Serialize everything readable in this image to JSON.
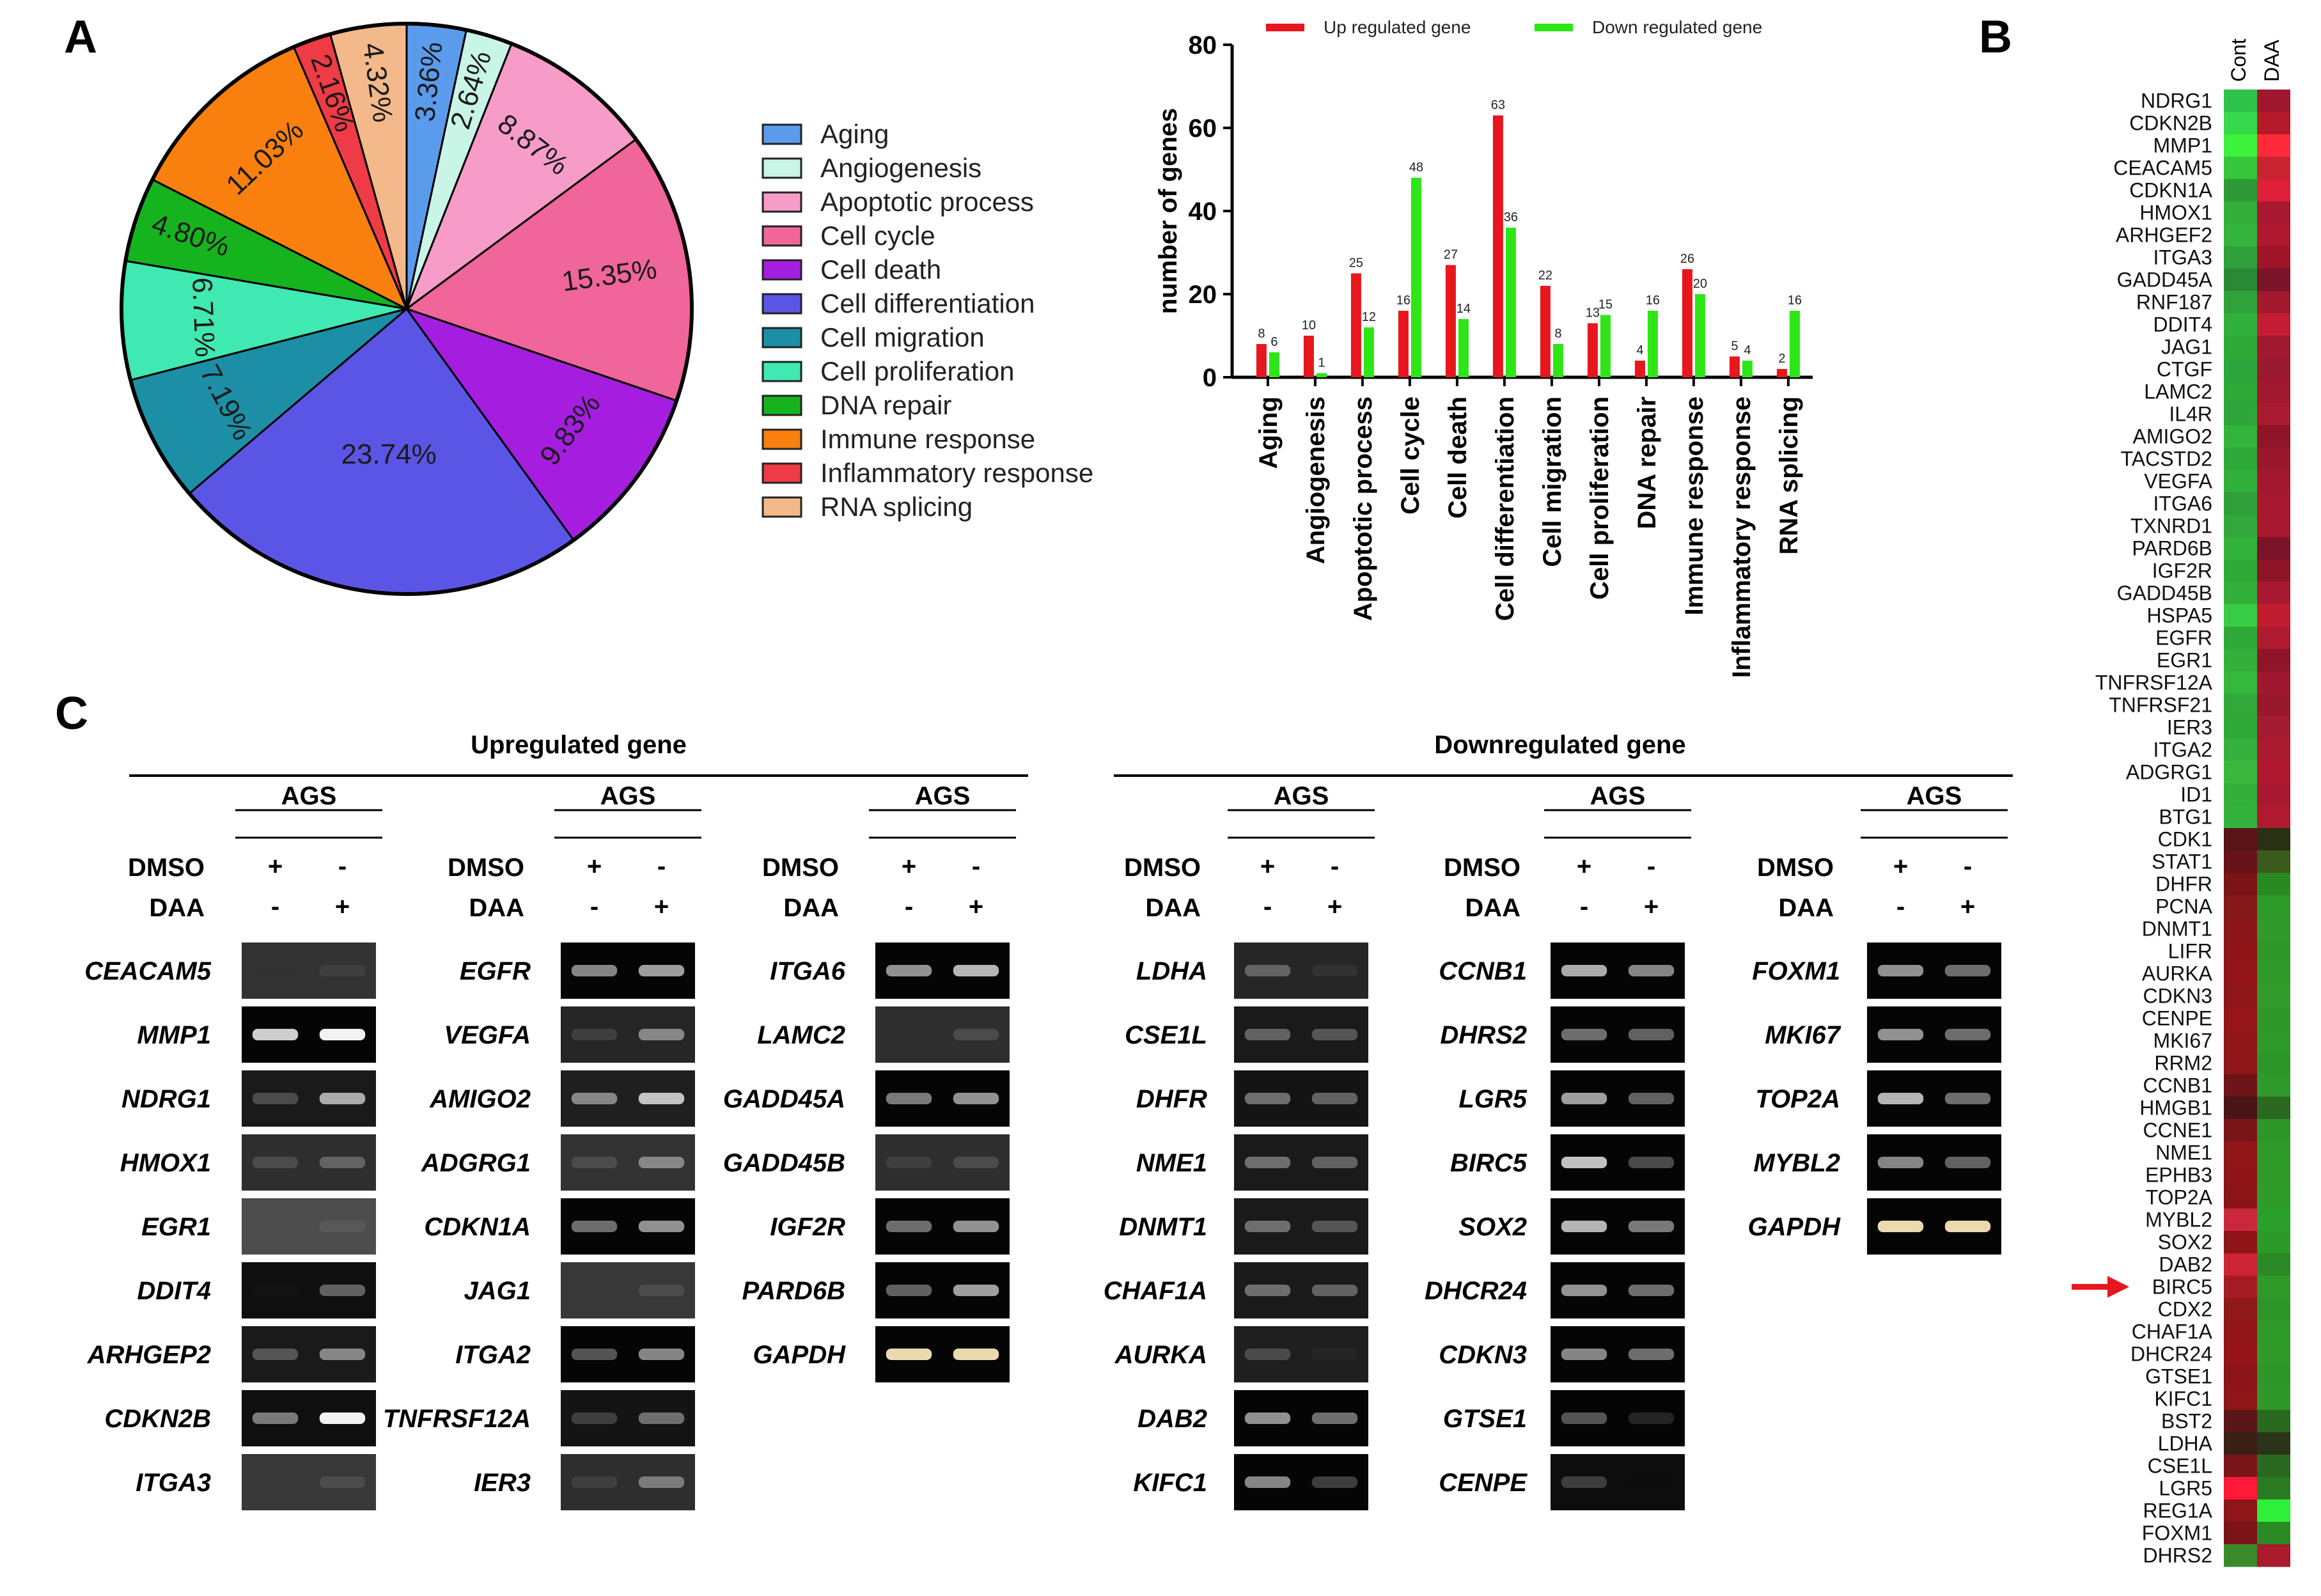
{
  "panel_labels": {
    "a": "A",
    "b": "B",
    "c": "C"
  },
  "chart_data": [
    {
      "type": "pie",
      "panel": "A",
      "categories": [
        "Aging",
        "Angiogenesis",
        "Apoptotic process",
        "Cell cycle",
        "Cell death",
        "Cell differentiation",
        "Cell migration",
        "Cell proliferation",
        "DNA repair",
        "Immune response",
        "Inflammatory response",
        "RNA splicing"
      ],
      "values": [
        3.36,
        2.64,
        8.87,
        15.35,
        9.83,
        23.74,
        7.19,
        6.71,
        4.8,
        11.03,
        2.16,
        4.32
      ],
      "labels": [
        "3.36%",
        "2.64%",
        "8.87%",
        "15.35%",
        "9.83%",
        "23.74%",
        "7.19%",
        "6.71%",
        "4.80%",
        "11.03%",
        "2.16%",
        "4.32%"
      ],
      "colors": [
        "#5b9bec",
        "#c9f5e6",
        "#f79cc8",
        "#f0659a",
        "#a51ee0",
        "#5b55e6",
        "#1c8fa6",
        "#40e8b2",
        "#15b41f",
        "#f9800e",
        "#ef3b45",
        "#f3b98a"
      ],
      "legend_position": "right"
    },
    {
      "type": "bar",
      "panel": "A",
      "categories": [
        "Aging",
        "Angiogenesis",
        "Apoptotic process",
        "Cell cycle",
        "Cell death",
        "Cell differentiation",
        "Cell migration",
        "Cell proliferation",
        "DNA repair",
        "Immune response",
        "Inflammatory response",
        "RNA splicing"
      ],
      "series": [
        {
          "name": "Up regulated gene",
          "color": "#e8161d",
          "values": [
            8,
            10,
            25,
            16,
            27,
            63,
            22,
            13,
            4,
            26,
            5,
            2
          ]
        },
        {
          "name": "Down regulated gene",
          "color": "#2ee616",
          "values": [
            6,
            1,
            12,
            48,
            14,
            36,
            8,
            15,
            16,
            20,
            4,
            16
          ]
        }
      ],
      "ylabel": "number of genes",
      "xlabel": "",
      "ylim": [
        0,
        80
      ],
      "yticks": [
        "0",
        "20",
        "40",
        "60",
        "80"
      ],
      "legend_position": "top"
    }
  ],
  "heatmap": {
    "columns": [
      "Cont",
      "DAA"
    ],
    "genes": [
      "NDRG1",
      "CDKN2B",
      "MMP1",
      "CEACAM5",
      "CDKN1A",
      "HMOX1",
      "ARHGEF2",
      "ITGA3",
      "GADD45A",
      "RNF187",
      "DDIT4",
      "JAG1",
      "CTGF",
      "LAMC2",
      "IL4R",
      "AMIGO2",
      "TACSTD2",
      "VEGFA",
      "ITGA6",
      "TXNRD1",
      "PARD6B",
      "IGF2R",
      "GADD45B",
      "HSPA5",
      "EGFR",
      "EGR1",
      "TNFRSF12A",
      "TNFRSF21",
      "IER3",
      "ITGA2",
      "ADGRG1",
      "ID1",
      "BTG1",
      "CDK1",
      "STAT1",
      "DHFR",
      "PCNA",
      "DNMT1",
      "LIFR",
      "AURKA",
      "CDKN3",
      "CENPE",
      "MKI67",
      "RRM2",
      "CCNB1",
      "HMGB1",
      "CCNE1",
      "NME1",
      "EPHB3",
      "TOP2A",
      "MYBL2",
      "SOX2",
      "DAB2",
      "BIRC5",
      "CDX2",
      "CHAF1A",
      "DHCR24",
      "GTSE1",
      "KIFC1",
      "BST2",
      "LDHA",
      "CSE1L",
      "LGR5",
      "REG1A",
      "FOXM1",
      "DHRS2"
    ],
    "cont_colors": [
      "#2fc24a",
      "#36d84c",
      "#3cf23a",
      "#38c63c",
      "#2e9a36",
      "#34b03a",
      "#35b43c",
      "#2fa03a",
      "#2a8a34",
      "#2fa23a",
      "#32b03c",
      "#2fa838",
      "#2ca53a",
      "#2fa838",
      "#2ea53a",
      "#33b43a",
      "#2fa83a",
      "#32b03c",
      "#2fa038",
      "#32a83c",
      "#33b23c",
      "#2fa838",
      "#32b03a",
      "#38cc44",
      "#2fa838",
      "#33b03a",
      "#35b83c",
      "#32a83a",
      "#2fa838",
      "#34b03c",
      "#3ab83e",
      "#34b03a",
      "#33b23c",
      "#5a1418",
      "#661218",
      "#7a1416",
      "#851818",
      "#8a161a",
      "#8e1418",
      "#921418",
      "#8f1618",
      "#951518",
      "#901618",
      "#8f1619",
      "#6d1416",
      "#4a1418",
      "#7a1518",
      "#901618",
      "#8e1418",
      "#8a1416",
      "#c9283c",
      "#8f1418",
      "#cc2434",
      "#a51c24",
      "#8f1818",
      "#921618",
      "#951418",
      "#8a1418",
      "#8f1618",
      "#5a1616",
      "#3a2014",
      "#7a161a",
      "#ff1a3a",
      "#8e1618",
      "#7a1418",
      "#3a8a2a"
    ],
    "daa_colors": [
      "#a01830",
      "#b41a2a",
      "#ff2a3c",
      "#c82430",
      "#e0203a",
      "#a81830",
      "#b01830",
      "#a01428",
      "#7a1428",
      "#a2182c",
      "#c41c34",
      "#a21830",
      "#9a1830",
      "#a21830",
      "#aa1a30",
      "#901428",
      "#9a182c",
      "#a21830",
      "#a81830",
      "#aa1830",
      "#7a1428",
      "#901428",
      "#a81830",
      "#c01c30",
      "#b01a30",
      "#8e142a",
      "#a01830",
      "#9a182c",
      "#a41a30",
      "#ac1a30",
      "#b01830",
      "#a81830",
      "#b01a30",
      "#2a3014",
      "#3a5a1a",
      "#2a8a22",
      "#2e9a28",
      "#309a2a",
      "#2f9628",
      "#2e9a28",
      "#339c2a",
      "#2f9828",
      "#2e9a28",
      "#2c9628",
      "#2f9a2a",
      "#2a6a20",
      "#2e9628",
      "#2e9a28",
      "#309a28",
      "#2e9c28",
      "#2aa02a",
      "#2c9a28",
      "#2a8a26",
      "#2f9a28",
      "#2e9628",
      "#2e9a28",
      "#309a28",
      "#2e9628",
      "#2f9828",
      "#2a6a20",
      "#2a3418",
      "#2a6a20",
      "#2a7a22",
      "#2ef03a",
      "#2a8a24",
      "#a81a2c"
    ],
    "arrow_target": "BIRC5",
    "arrow_color": "#e8161d"
  },
  "gels": {
    "up_title": "Upregulated gene",
    "down_title": "Downregulated gene",
    "cell_line": "AGS",
    "row_dmso": "DMSO",
    "row_daa": "DAA",
    "dmso_signs": [
      "+",
      "-"
    ],
    "daa_signs": [
      "-",
      "+"
    ],
    "blocks": [
      {
        "genes": [
          "CEACAM5",
          "MMP1",
          "NDRG1",
          "HMOX1",
          "EGR1",
          "DDIT4",
          "ARHGEP2",
          "CDKN2B",
          "ITGA3"
        ],
        "bands": [
          [
            0.1,
            0.25
          ],
          [
            0.85,
            1.0
          ],
          [
            0.3,
            0.7
          ],
          [
            0.3,
            0.4
          ],
          [
            0.25,
            0.35
          ],
          [
            0.08,
            0.4
          ],
          [
            0.35,
            0.55
          ],
          [
            0.5,
            1.0
          ],
          [
            0.1,
            0.3
          ]
        ],
        "bg": [
          0.2,
          0.02,
          0.1,
          0.18,
          0.3,
          0.06,
          0.1,
          0.06,
          0.22
        ]
      },
      {
        "genes": [
          "EGFR",
          "VEGFA",
          "AMIGO2",
          "ADGRG1",
          "CDKN1A",
          "JAG1",
          "ITGA2",
          "TNFRSF12A",
          "IER3"
        ],
        "bands": [
          [
            0.55,
            0.65
          ],
          [
            0.25,
            0.55
          ],
          [
            0.55,
            0.8
          ],
          [
            0.3,
            0.55
          ],
          [
            0.45,
            0.6
          ],
          [
            0.22,
            0.3
          ],
          [
            0.35,
            0.55
          ],
          [
            0.25,
            0.45
          ],
          [
            0.25,
            0.5
          ]
        ],
        "bg": [
          0.02,
          0.15,
          0.12,
          0.2,
          0.02,
          0.22,
          0.02,
          0.08,
          0.18
        ]
      },
      {
        "genes": [
          "ITGA6",
          "LAMC2",
          "GADD45A",
          "GADD45B",
          "IGF2R",
          "PARD6B",
          "GAPDH"
        ],
        "bands": [
          [
            0.6,
            0.75
          ],
          [
            0.15,
            0.3
          ],
          [
            0.5,
            0.6
          ],
          [
            0.25,
            0.3
          ],
          [
            0.45,
            0.6
          ],
          [
            0.4,
            0.65
          ],
          [
            1.0,
            1.0
          ]
        ],
        "bg": [
          0.02,
          0.18,
          0.02,
          0.18,
          0.02,
          0.02,
          0.02
        ]
      },
      {
        "genes": [
          "LDHA",
          "CSE1L",
          "DHFR",
          "NME1",
          "DNMT1",
          "CHAF1A",
          "AURKA",
          "DAB2",
          "KIFC1"
        ],
        "bands": [
          [
            0.4,
            0.2
          ],
          [
            0.4,
            0.35
          ],
          [
            0.45,
            0.4
          ],
          [
            0.45,
            0.4
          ],
          [
            0.45,
            0.35
          ],
          [
            0.45,
            0.4
          ],
          [
            0.3,
            0.15
          ],
          [
            0.6,
            0.45
          ],
          [
            0.55,
            0.25
          ]
        ],
        "bg": [
          0.15,
          0.1,
          0.08,
          0.1,
          0.1,
          0.1,
          0.12,
          0.02,
          0.02
        ]
      },
      {
        "genes": [
          "CCNB1",
          "DHRS2",
          "LGR5",
          "BIRC5",
          "SOX2",
          "DHCR24",
          "CDKN3",
          "GTSE1",
          "CENPE"
        ],
        "bands": [
          [
            0.7,
            0.55
          ],
          [
            0.45,
            0.4
          ],
          [
            0.65,
            0.4
          ],
          [
            0.8,
            0.3
          ],
          [
            0.75,
            0.5
          ],
          [
            0.6,
            0.45
          ],
          [
            0.55,
            0.45
          ],
          [
            0.35,
            0.15
          ],
          [
            0.25,
            0.02
          ]
        ],
        "bg": [
          0.02,
          0.02,
          0.02,
          0.02,
          0.02,
          0.02,
          0.02,
          0.02,
          0.05
        ]
      },
      {
        "genes": [
          "FOXM1",
          "MKI67",
          "TOP2A",
          "MYBL2",
          "GAPDH"
        ],
        "bands": [
          [
            0.6,
            0.45
          ],
          [
            0.6,
            0.45
          ],
          [
            0.75,
            0.45
          ],
          [
            0.55,
            0.4
          ],
          [
            1.0,
            1.0
          ]
        ],
        "bg": [
          0.02,
          0.02,
          0.02,
          0.02,
          0.02
        ]
      }
    ]
  }
}
